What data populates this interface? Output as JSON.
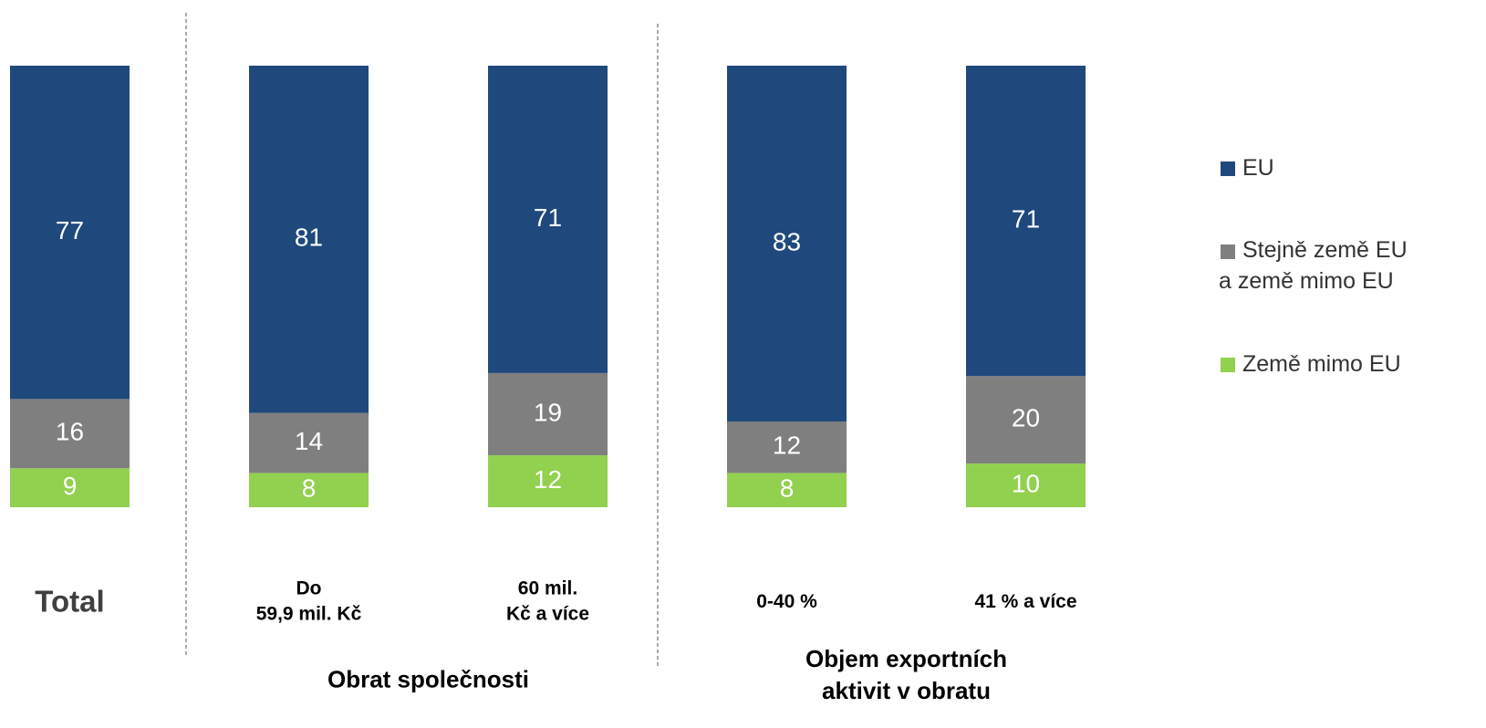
{
  "chart_data": {
    "type": "bar",
    "stacking": "percent",
    "categories": [
      "Total",
      "Do\n59,9 mil. Kč",
      "60 mil.\nKč a více",
      "0-40 %",
      "41 % a více"
    ],
    "groups": [
      "Obrat společnosti",
      "Objem exportních\naktivit v obratu"
    ],
    "series": [
      {
        "name": "EU",
        "color": "#1f497d",
        "values": [
          77,
          81,
          71,
          83,
          71
        ]
      },
      {
        "name": "Stejně země EU\na země mimo EU",
        "color": "#7f7f7f",
        "values": [
          16,
          14,
          19,
          12,
          20
        ]
      },
      {
        "name": "Země mimo EU",
        "color": "#92d050",
        "values": [
          9,
          8,
          12,
          8,
          10
        ]
      }
    ],
    "legend": "right"
  }
}
